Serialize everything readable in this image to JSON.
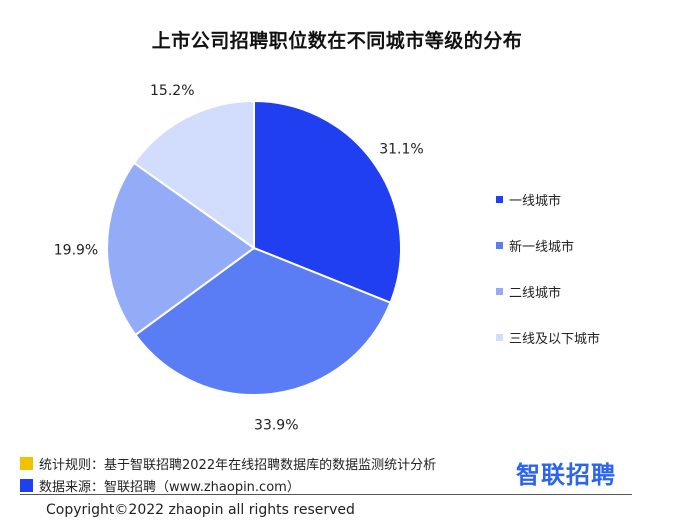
{
  "colors": {
    "series": [
      "#1f3ff0",
      "#5a7cf5",
      "#94abf8",
      "#d2dcfc"
    ],
    "note_mark": "#f2c200",
    "source_mark": "#1f3ff0"
  },
  "chart_data": {
    "type": "pie",
    "title": "上市公司招聘职位数在不同城市等级的分布",
    "categories": [
      "一线城市",
      "新一线城市",
      "二线城市",
      "三线及以下城市"
    ],
    "values": [
      31.1,
      33.9,
      19.9,
      15.2
    ],
    "value_labels": [
      "31.1%",
      "33.9%",
      "19.9%",
      "15.2%"
    ],
    "legend": {
      "placement": "right",
      "entries": [
        "一线城市",
        "新一线城市",
        "二线城市",
        "三线及以下城市"
      ]
    }
  },
  "footer": {
    "rule_text": "统计规则：基于智联招聘2022年在线招聘数据库的数据监测统计分析",
    "source_text": "数据来源：智联招聘（www.zhaopin.com）",
    "brand": "智联招聘",
    "copyright": "Copyright©2022  zhaopin all rights reserved"
  }
}
